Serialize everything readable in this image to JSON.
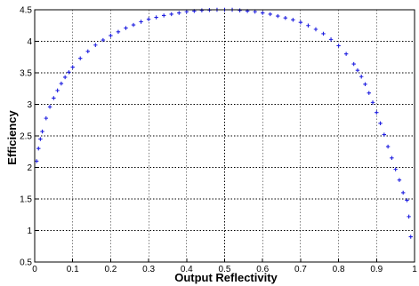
{
  "chart_data": {
    "type": "scatter",
    "xlabel": "Output Reflectivity",
    "ylabel": "Efficiency",
    "xlim": [
      0,
      1
    ],
    "ylim": [
      0.5,
      4.5
    ],
    "grid": true,
    "marker": "+",
    "marker_color": "#1f1fe0",
    "x_ticks": [
      0,
      0.1,
      0.2,
      0.3,
      0.4,
      0.5,
      0.6,
      0.7,
      0.8,
      0.9,
      1
    ],
    "x_tick_labels": [
      "0",
      "0.1",
      "0.2",
      "0.3",
      "0.4",
      "0.5",
      "0.6",
      "0.7",
      "0.8",
      "0.9",
      "1"
    ],
    "y_ticks": [
      0.5,
      1,
      1.5,
      2,
      2.5,
      3,
      3.5,
      4,
      4.5
    ],
    "y_tick_labels": [
      "0.5",
      "1",
      "1.5",
      "2",
      "2.5",
      "3",
      "3.5",
      "4",
      "4.5"
    ],
    "series": [
      {
        "color": "#1f1fe0",
        "x": [
          0.005,
          0.01,
          0.015,
          0.02,
          0.03,
          0.04,
          0.05,
          0.06,
          0.07,
          0.08,
          0.09,
          0.1,
          0.12,
          0.14,
          0.16,
          0.18,
          0.2,
          0.22,
          0.24,
          0.26,
          0.28,
          0.3,
          0.32,
          0.34,
          0.36,
          0.38,
          0.4,
          0.42,
          0.44,
          0.46,
          0.48,
          0.5,
          0.52,
          0.54,
          0.56,
          0.58,
          0.6,
          0.62,
          0.64,
          0.66,
          0.68,
          0.7,
          0.72,
          0.74,
          0.76,
          0.78,
          0.8,
          0.82,
          0.84,
          0.85,
          0.86,
          0.87,
          0.88,
          0.89,
          0.9,
          0.91,
          0.92,
          0.93,
          0.94,
          0.95,
          0.96,
          0.97,
          0.98,
          0.985,
          0.99
        ],
        "y": [
          2.1,
          2.3,
          2.45,
          2.57,
          2.78,
          2.96,
          3.1,
          3.22,
          3.33,
          3.43,
          3.51,
          3.59,
          3.73,
          3.84,
          3.94,
          4.02,
          4.09,
          4.15,
          4.21,
          4.26,
          4.31,
          4.35,
          4.38,
          4.41,
          4.43,
          4.45,
          4.47,
          4.48,
          4.49,
          4.495,
          4.5,
          4.5,
          4.5,
          4.49,
          4.48,
          4.47,
          4.45,
          4.43,
          4.4,
          4.37,
          4.34,
          4.3,
          4.25,
          4.19,
          4.12,
          4.03,
          3.93,
          3.8,
          3.64,
          3.54,
          3.44,
          3.32,
          3.18,
          3.03,
          2.87,
          2.7,
          2.52,
          2.33,
          2.15,
          1.97,
          1.8,
          1.6,
          1.48,
          1.22,
          0.9
        ]
      }
    ]
  }
}
